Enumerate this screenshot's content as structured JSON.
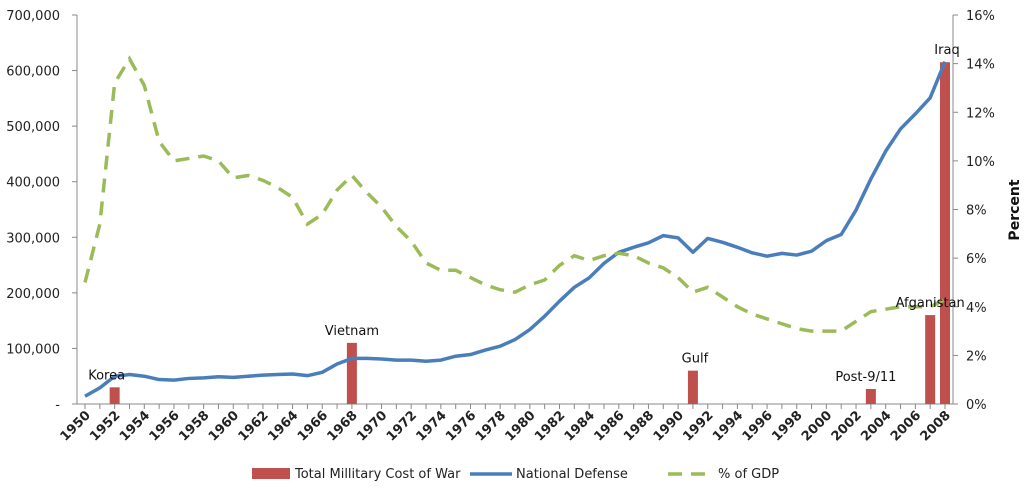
{
  "chart_data": {
    "type": "bar+line",
    "title": "",
    "xlabel": "",
    "ylabel_left": "",
    "ylabel_right": "Percent",
    "ylim_left": [
      0,
      700000
    ],
    "ylim_right": [
      0,
      16
    ],
    "y_left_ticks": [
      "-",
      "100,000",
      "200,000",
      "300,000",
      "400,000",
      "500,000",
      "600,000",
      "700,000"
    ],
    "y_right_ticks": [
      "0%",
      "2%",
      "4%",
      "6%",
      "8%",
      "10%",
      "12%",
      "14%",
      "16%"
    ],
    "x": [
      1950,
      1951,
      1952,
      1953,
      1954,
      1955,
      1956,
      1957,
      1958,
      1959,
      1960,
      1961,
      1962,
      1963,
      1964,
      1965,
      1966,
      1967,
      1968,
      1969,
      1970,
      1971,
      1972,
      1973,
      1974,
      1975,
      1976,
      1977,
      1978,
      1979,
      1980,
      1981,
      1982,
      1983,
      1984,
      1985,
      1986,
      1987,
      1988,
      1989,
      1990,
      1991,
      1992,
      1993,
      1994,
      1995,
      1996,
      1997,
      1998,
      1999,
      2000,
      2001,
      2002,
      2003,
      2004,
      2005,
      2006,
      2007,
      2008
    ],
    "x_tick_labels": [
      "1950",
      "1952",
      "1954",
      "1956",
      "1958",
      "1960",
      "1962",
      "1964",
      "1966",
      "1968",
      "1970",
      "1972",
      "1974",
      "1976",
      "1978",
      "1980",
      "1982",
      "1984",
      "1986",
      "1988",
      "1990",
      "1992",
      "1994",
      "1996",
      "1998",
      "2000",
      "2002",
      "2004",
      "2006",
      "2008"
    ],
    "series": [
      {
        "name": "Total Millitary Cost of War",
        "type": "bar",
        "axis": "left",
        "color": "#c0504d",
        "points": [
          {
            "year": 1952,
            "value": 30000,
            "label": "Korea"
          },
          {
            "year": 1968,
            "value": 110000,
            "label": "Vietnam"
          },
          {
            "year": 1991,
            "value": 60000,
            "label": "Gulf"
          },
          {
            "year": 2003,
            "value": 27000,
            "label": "Post-9/11"
          },
          {
            "year": 2007,
            "value": 160000,
            "label": "Afganistan"
          },
          {
            "year": 2008,
            "value": 615000,
            "label": "Iraq"
          }
        ]
      },
      {
        "name": "National Defense",
        "type": "line",
        "axis": "left",
        "color": "#4f81bd",
        "values": [
          14000,
          29000,
          50000,
          53000,
          50000,
          44000,
          43000,
          46000,
          47000,
          49000,
          48000,
          50000,
          52000,
          53000,
          54000,
          51000,
          57000,
          72000,
          82000,
          82000,
          81000,
          79000,
          79000,
          77000,
          79000,
          86000,
          89000,
          97000,
          104000,
          116000,
          134000,
          158000,
          185000,
          210000,
          227000,
          253000,
          273000,
          282000,
          290000,
          303000,
          299000,
          273000,
          298000,
          291000,
          282000,
          272000,
          266000,
          271000,
          268000,
          275000,
          294000,
          305000,
          349000,
          405000,
          455000,
          495000,
          522000,
          551000,
          616000
        ]
      },
      {
        "name": "% of GDP",
        "type": "line",
        "dashed": true,
        "axis": "right",
        "color": "#9bbb59",
        "values": [
          5.0,
          7.4,
          13.2,
          14.2,
          13.1,
          10.8,
          10.0,
          10.1,
          10.2,
          10.0,
          9.3,
          9.4,
          9.2,
          8.9,
          8.5,
          7.4,
          7.8,
          8.8,
          9.4,
          8.7,
          8.1,
          7.3,
          6.7,
          5.8,
          5.5,
          5.5,
          5.2,
          4.9,
          4.7,
          4.6,
          4.9,
          5.1,
          5.7,
          6.1,
          5.9,
          6.1,
          6.2,
          6.1,
          5.8,
          5.6,
          5.2,
          4.6,
          4.8,
          4.4,
          4.0,
          3.7,
          3.5,
          3.3,
          3.1,
          3.0,
          3.0,
          3.0,
          3.4,
          3.8,
          3.9,
          4.0,
          4.0,
          4.0,
          4.3
        ]
      }
    ],
    "legend": "bottom"
  }
}
